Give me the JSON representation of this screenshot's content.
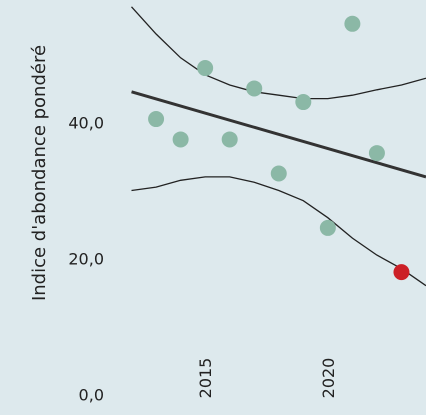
{
  "chart_data": {
    "type": "scatter",
    "ylabel": "Indice d'abondance pondéré",
    "xlim": [
      2011.0,
      2024.0
    ],
    "ylim": [
      -3,
      58
    ],
    "x_ticks": [
      2015,
      2020
    ],
    "x_tick_labels": [
      "2015",
      "2020"
    ],
    "y_ticks": [
      0,
      20,
      40
    ],
    "y_tick_labels": [
      "0,0",
      "20,0",
      "40,0"
    ],
    "grid": false,
    "points": [
      {
        "x": 2013,
        "y": 40.5,
        "highlight": false
      },
      {
        "x": 2014,
        "y": 37.5,
        "highlight": false
      },
      {
        "x": 2015,
        "y": 48.0,
        "highlight": false
      },
      {
        "x": 2016,
        "y": 37.5,
        "highlight": false
      },
      {
        "x": 2017,
        "y": 45.0,
        "highlight": false
      },
      {
        "x": 2018,
        "y": 32.5,
        "highlight": false
      },
      {
        "x": 2019,
        "y": 43.0,
        "highlight": false
      },
      {
        "x": 2020,
        "y": 24.5,
        "highlight": false
      },
      {
        "x": 2021,
        "y": 54.5,
        "highlight": false
      },
      {
        "x": 2022,
        "y": 35.5,
        "highlight": false
      },
      {
        "x": 2023,
        "y": 18.0,
        "highlight": true
      }
    ],
    "trend": {
      "x": [
        2012,
        2024
      ],
      "y": [
        44.5,
        32.0
      ]
    },
    "ci_upper": {
      "x": [
        2012,
        2013,
        2014,
        2015,
        2016,
        2017,
        2018,
        2019,
        2020,
        2021,
        2022,
        2023,
        2024
      ],
      "y": [
        57.0,
        53.0,
        49.5,
        47.0,
        45.5,
        44.5,
        44.0,
        43.5,
        43.5,
        44.0,
        44.8,
        45.5,
        46.5
      ]
    },
    "ci_lower": {
      "x": [
        2012,
        2013,
        2014,
        2015,
        2016,
        2017,
        2018,
        2019,
        2020,
        2021,
        2022,
        2023,
        2024
      ],
      "y": [
        30.0,
        30.5,
        31.5,
        32.0,
        32.0,
        31.2,
        30.0,
        28.5,
        26.0,
        23.0,
        20.5,
        18.5,
        16.0
      ]
    },
    "colors": {
      "background": "#dde9ed",
      "point": "#8bb8a6",
      "highlight": "#cc2027",
      "trend": "#333333",
      "ci": "#222222",
      "text": "#222222"
    }
  }
}
